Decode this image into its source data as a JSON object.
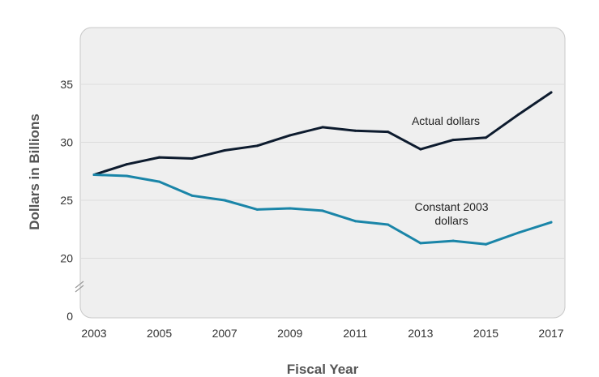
{
  "chart_data": {
    "type": "line",
    "title": "",
    "xlabel": "Fiscal Year",
    "ylabel": "Dollars in Billions",
    "x": [
      2003,
      2004,
      2005,
      2006,
      2007,
      2008,
      2009,
      2010,
      2011,
      2012,
      2013,
      2014,
      2015,
      2016,
      2017
    ],
    "x_ticks": [
      "2003",
      "2005",
      "2007",
      "2009",
      "2011",
      "2013",
      "2015",
      "2017"
    ],
    "y_ticks": [
      "0",
      "20",
      "25",
      "30",
      "35"
    ],
    "ylim": [
      0,
      39
    ],
    "y_axis_break": "between 0 and 20",
    "grid": "horizontal",
    "series": [
      {
        "name": "Actual dollars",
        "color": "#0d1b2e",
        "values": [
          27.2,
          28.1,
          28.7,
          28.6,
          29.3,
          29.7,
          30.6,
          31.3,
          31.0,
          30.9,
          29.4,
          30.2,
          30.4,
          32.4,
          34.3
        ]
      },
      {
        "name": "Constant 2003 dollars",
        "label_lines": [
          "Constant 2003",
          "dollars"
        ],
        "color": "#1a85a8",
        "values": [
          27.2,
          27.1,
          26.6,
          25.4,
          25.0,
          24.2,
          24.3,
          24.1,
          23.2,
          22.9,
          21.3,
          21.5,
          21.2,
          22.2,
          23.1
        ]
      }
    ]
  }
}
